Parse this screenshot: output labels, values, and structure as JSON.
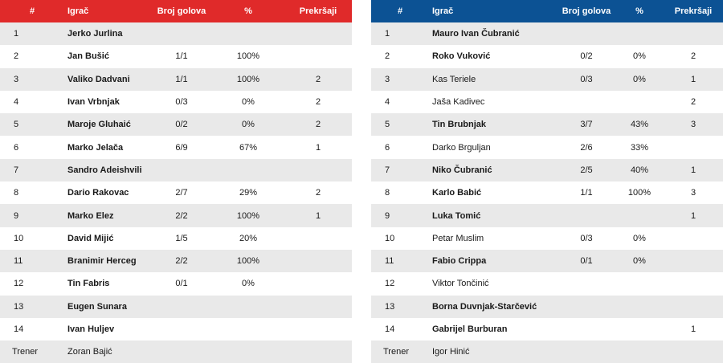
{
  "headers": {
    "num": "#",
    "player": "Igrač",
    "goals": "Broj golova",
    "pct": "%",
    "fouls": "Prekršaji"
  },
  "left": {
    "accent": "#e02a2a",
    "rows": [
      {
        "num": "1",
        "player": "Jerko Jurlina",
        "goals": "",
        "pct": "",
        "fouls": "",
        "bold": true
      },
      {
        "num": "2",
        "player": "Jan Bušić",
        "goals": "1/1",
        "pct": "100%",
        "fouls": "",
        "bold": true
      },
      {
        "num": "3",
        "player": "Valiko Dadvani",
        "goals": "1/1",
        "pct": "100%",
        "fouls": "2",
        "bold": true
      },
      {
        "num": "4",
        "player": "Ivan Vrbnjak",
        "goals": "0/3",
        "pct": "0%",
        "fouls": "2",
        "bold": true
      },
      {
        "num": "5",
        "player": "Maroje Gluhaić",
        "goals": "0/2",
        "pct": "0%",
        "fouls": "2",
        "bold": true
      },
      {
        "num": "6",
        "player": "Marko Jelača",
        "goals": "6/9",
        "pct": "67%",
        "fouls": "1",
        "bold": true
      },
      {
        "num": "7",
        "player": "Sandro Adeishvili",
        "goals": "",
        "pct": "",
        "fouls": "",
        "bold": true
      },
      {
        "num": "8",
        "player": "Dario Rakovac",
        "goals": "2/7",
        "pct": "29%",
        "fouls": "2",
        "bold": true
      },
      {
        "num": "9",
        "player": "Marko Elez",
        "goals": "2/2",
        "pct": "100%",
        "fouls": "1",
        "bold": true
      },
      {
        "num": "10",
        "player": "David Mijić",
        "goals": "1/5",
        "pct": "20%",
        "fouls": "",
        "bold": true
      },
      {
        "num": "11",
        "player": "Branimir Herceg",
        "goals": "2/2",
        "pct": "100%",
        "fouls": "",
        "bold": true
      },
      {
        "num": "12",
        "player": "Tin Fabris",
        "goals": "0/1",
        "pct": "0%",
        "fouls": "",
        "bold": true
      },
      {
        "num": "13",
        "player": "Eugen Sunara",
        "goals": "",
        "pct": "",
        "fouls": "",
        "bold": true
      },
      {
        "num": "14",
        "player": "Ivan Huljev",
        "goals": "",
        "pct": "",
        "fouls": "",
        "bold": true
      }
    ],
    "coach_label": "Trener",
    "coach": "Zoran Bajić"
  },
  "right": {
    "accent": "#0c5294",
    "rows": [
      {
        "num": "1",
        "player": "Mauro Ivan Čubranić",
        "goals": "",
        "pct": "",
        "fouls": "",
        "bold": true
      },
      {
        "num": "2",
        "player": "Roko Vuković",
        "goals": "0/2",
        "pct": "0%",
        "fouls": "2",
        "bold": true
      },
      {
        "num": "3",
        "player": "Kas Teriele",
        "goals": "0/3",
        "pct": "0%",
        "fouls": "1",
        "bold": false
      },
      {
        "num": "4",
        "player": "Jaša Kadivec",
        "goals": "",
        "pct": "",
        "fouls": "2",
        "bold": false
      },
      {
        "num": "5",
        "player": "Tin Brubnjak",
        "goals": "3/7",
        "pct": "43%",
        "fouls": "3",
        "bold": true
      },
      {
        "num": "6",
        "player": "Darko Brguljan",
        "goals": "2/6",
        "pct": "33%",
        "fouls": "",
        "bold": false
      },
      {
        "num": "7",
        "player": "Niko Čubranić",
        "goals": "2/5",
        "pct": "40%",
        "fouls": "1",
        "bold": true
      },
      {
        "num": "8",
        "player": "Karlo Babić",
        "goals": "1/1",
        "pct": "100%",
        "fouls": "3",
        "bold": true
      },
      {
        "num": "9",
        "player": "Luka Tomić",
        "goals": "",
        "pct": "",
        "fouls": "1",
        "bold": true
      },
      {
        "num": "10",
        "player": "Petar Muslim",
        "goals": "0/3",
        "pct": "0%",
        "fouls": "",
        "bold": false
      },
      {
        "num": "11",
        "player": "Fabio Crippa",
        "goals": "0/1",
        "pct": "0%",
        "fouls": "",
        "bold": true
      },
      {
        "num": "12",
        "player": "Viktor Tončinić",
        "goals": "",
        "pct": "",
        "fouls": "",
        "bold": false
      },
      {
        "num": "13",
        "player": "Borna Duvnjak-Starčević",
        "goals": "",
        "pct": "",
        "fouls": "",
        "bold": true
      },
      {
        "num": "14",
        "player": "Gabrijel Burburan",
        "goals": "",
        "pct": "",
        "fouls": "1",
        "bold": true
      }
    ],
    "coach_label": "Trener",
    "coach": "Igor Hinić"
  }
}
